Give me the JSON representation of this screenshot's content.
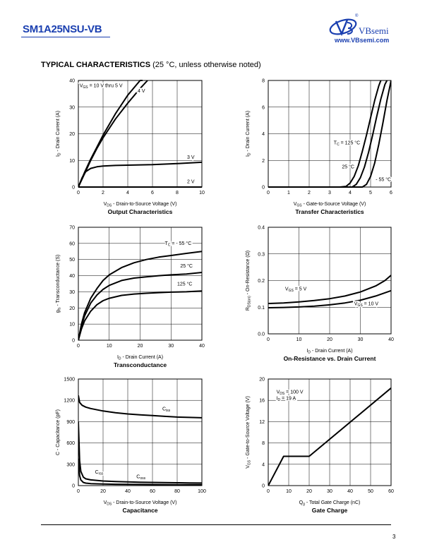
{
  "header": {
    "part_number": "SM1A25NSU-VB",
    "brand": "VBsemi",
    "registered": "®",
    "website": "www.VBsemi.com"
  },
  "section": {
    "title_bold": "TYPICAL CHARACTERISTICS",
    "title_rest": " (25 °C, unless otherwise noted)"
  },
  "footer": {
    "page": "3"
  },
  "chart_data": [
    {
      "id": "output",
      "type": "line",
      "title": "Output Characteristics",
      "xlabel": [
        "V",
        "DS",
        " - Drain-to-Source Voltage (V)"
      ],
      "ylabel": [
        "I",
        "D",
        " - Drain Current (A)"
      ],
      "xlim": [
        0,
        10
      ],
      "ylim": [
        0,
        40
      ],
      "xticks": [
        0,
        2,
        4,
        6,
        8,
        10
      ],
      "yticks": [
        0,
        10,
        20,
        30,
        40
      ],
      "grid": true,
      "series": [
        {
          "name": "VGS = 10 V thru 5 V",
          "x": [
            0,
            0.5,
            1,
            1.5,
            2,
            3,
            4,
            5,
            5.2
          ],
          "y": [
            0,
            5.5,
            10.5,
            15,
            19.5,
            27.5,
            34.5,
            40,
            40
          ]
        },
        {
          "name": "4 V",
          "x": [
            0,
            0.5,
            1,
            1.5,
            2,
            3,
            4,
            5,
            5.6
          ],
          "y": [
            0,
            5,
            10,
            14.5,
            18.5,
            25.5,
            31.5,
            37,
            40
          ]
        },
        {
          "name": "3 V",
          "x": [
            0,
            0.3,
            0.6,
            1,
            1.5,
            2,
            3,
            4,
            6,
            8,
            10
          ],
          "y": [
            0,
            3.5,
            5.8,
            7,
            7.6,
            7.9,
            8.1,
            8.2,
            8.4,
            8.8,
            9.3
          ]
        },
        {
          "name": "2 V",
          "x": [
            0,
            10
          ],
          "y": [
            0,
            0
          ]
        }
      ],
      "annotations": [
        {
          "parts": [
            "V",
            "GS",
            " = 10 V thru 5 V"
          ],
          "x": 0.1,
          "y": 37.5
        },
        {
          "parts": [
            "4 V"
          ],
          "x": 4.8,
          "y": 35.5
        },
        {
          "parts": [
            "3 V"
          ],
          "x": 8.8,
          "y": 10.6
        },
        {
          "parts": [
            "2 V"
          ],
          "x": 8.8,
          "y": 1.5
        }
      ]
    },
    {
      "id": "transfer",
      "type": "line",
      "title": "Transfer Characteristics",
      "xlabel": [
        "V",
        "GS",
        " - Gate-to-Source Voltage (V)"
      ],
      "ylabel": [
        "I",
        "D",
        " - Drain Current (A)"
      ],
      "xlim": [
        0,
        6
      ],
      "ylim": [
        0,
        8
      ],
      "xticks": [
        0,
        1,
        2,
        3,
        4,
        5,
        6
      ],
      "yticks": [
        0,
        2,
        4,
        6,
        8
      ],
      "grid": true,
      "series": [
        {
          "name": "TC = 125 °C",
          "x": [
            0,
            3.5,
            3.8,
            4,
            4.2,
            4.4,
            4.6,
            4.8,
            5,
            5.2,
            5.4,
            5.5
          ],
          "y": [
            0,
            0,
            0.05,
            0.3,
            0.8,
            1.6,
            2.7,
            3.9,
            5.2,
            6.5,
            7.6,
            8
          ]
        },
        {
          "name": "25 °C",
          "x": [
            0,
            4.1,
            4.3,
            4.5,
            4.7,
            4.9,
            5.1,
            5.3,
            5.5,
            5.7,
            5.8
          ],
          "y": [
            0,
            0,
            0.2,
            0.7,
            1.5,
            2.6,
            3.9,
            5.3,
            6.6,
            7.7,
            8
          ]
        },
        {
          "name": "- 55 °C",
          "x": [
            0,
            4.6,
            4.8,
            5,
            5.2,
            5.4,
            5.6,
            5.8,
            5.95,
            6
          ],
          "y": [
            0,
            0,
            0.2,
            0.8,
            1.8,
            3.2,
            4.8,
            6.5,
            7.6,
            8
          ]
        }
      ],
      "annotations": [
        {
          "parts": [
            "T",
            "C",
            " = 125 °C"
          ],
          "x": 3.2,
          "y": 3.2
        },
        {
          "parts": [
            "25 °C"
          ],
          "x": 3.6,
          "y": 1.4
        },
        {
          "parts": [
            "- 55 °C"
          ],
          "x": 5.25,
          "y": 0.45
        }
      ]
    },
    {
      "id": "gfs",
      "type": "line",
      "title": "Transconductance",
      "xlabel": [
        "I",
        "D",
        " - Drain Current (A)"
      ],
      "ylabel": [
        "g",
        "fs",
        " - Transconductance (S)"
      ],
      "xlim": [
        0,
        40
      ],
      "ylim": [
        0,
        70
      ],
      "xticks": [
        0,
        10,
        20,
        30,
        40
      ],
      "yticks": [
        0,
        10,
        20,
        30,
        40,
        50,
        60,
        70
      ],
      "grid": true,
      "series": [
        {
          "name": "TC = - 55 °C",
          "x": [
            0,
            1,
            2,
            4,
            6,
            8,
            10,
            14,
            18,
            22,
            26,
            30,
            35,
            40
          ],
          "y": [
            0,
            10,
            17,
            26,
            32,
            37,
            40.5,
            45,
            48,
            50,
            51.5,
            52.5,
            53.8,
            55
          ]
        },
        {
          "name": "25 °C",
          "x": [
            0,
            1,
            2,
            4,
            6,
            8,
            10,
            14,
            18,
            22,
            26,
            30,
            35,
            40
          ],
          "y": [
            0,
            9,
            15,
            23,
            28,
            31.5,
            34,
            37,
            38.5,
            39.3,
            40,
            40.5,
            41,
            42
          ]
        },
        {
          "name": "125 °C",
          "x": [
            0,
            1,
            2,
            4,
            6,
            8,
            10,
            14,
            18,
            22,
            26,
            30,
            35,
            40
          ],
          "y": [
            0,
            7,
            12,
            18,
            22,
            24.5,
            26,
            27.8,
            28.6,
            29.1,
            29.5,
            29.8,
            30,
            30.5
          ]
        }
      ],
      "annotations": [
        {
          "parts": [
            "T",
            "C",
            " = - 55 °C"
          ],
          "x": 28,
          "y": 59
        },
        {
          "parts": [
            "25 °C"
          ],
          "x": 33,
          "y": 45
        },
        {
          "parts": [
            "125 °C"
          ],
          "x": 32,
          "y": 34
        }
      ]
    },
    {
      "id": "rdson",
      "type": "line",
      "title": "On-Resistance vs. Drain Current",
      "xlabel": [
        "I",
        "D",
        " - Drain Current (A)"
      ],
      "ylabel": [
        "R",
        "DS(on)",
        " - On-Resistance (Ω)"
      ],
      "xlim": [
        0,
        40
      ],
      "ylim": [
        0,
        0.4
      ],
      "xticks": [
        0,
        10,
        20,
        30,
        40
      ],
      "yticks": [
        "0.0",
        "0.1",
        "0.2",
        "0.3",
        "0.4"
      ],
      "grid": true,
      "series": [
        {
          "name": "VGS = 5 V",
          "x": [
            0,
            5,
            10,
            15,
            20,
            25,
            30,
            35,
            38,
            40
          ],
          "y": [
            0.114,
            0.116,
            0.12,
            0.125,
            0.132,
            0.142,
            0.157,
            0.18,
            0.2,
            0.22
          ]
        },
        {
          "name": "VGS = 10 V",
          "x": [
            0,
            5,
            10,
            15,
            20,
            25,
            30,
            35,
            40
          ],
          "y": [
            0.098,
            0.099,
            0.101,
            0.104,
            0.109,
            0.116,
            0.126,
            0.142,
            0.162
          ]
        }
      ],
      "annotations": [
        {
          "parts": [
            "V",
            "GS",
            " = 5 V"
          ],
          "x": 5.5,
          "y": 0.163
        },
        {
          "parts": [
            "V",
            "GS",
            " = 10 V"
          ],
          "x": 28,
          "y": 0.107
        }
      ]
    },
    {
      "id": "cap",
      "type": "line",
      "title": "Capacitance",
      "xlabel": [
        "V",
        "DS",
        " - Drain-to-Source Voltage (V)"
      ],
      "ylabel": [
        "C - Capacitance (pF)"
      ],
      "xlim": [
        0,
        100
      ],
      "ylim": [
        0,
        1500
      ],
      "xticks": [
        0,
        20,
        40,
        60,
        80,
        100
      ],
      "yticks": [
        0,
        300,
        600,
        900,
        1200,
        1500
      ],
      "grid": true,
      "series": [
        {
          "name": "Ciss",
          "x": [
            0,
            1,
            3,
            6,
            10,
            20,
            30,
            40,
            50,
            60,
            70,
            80,
            90,
            100
          ],
          "y": [
            1270,
            1170,
            1130,
            1105,
            1085,
            1050,
            1025,
            1008,
            995,
            985,
            975,
            965,
            960,
            955
          ]
        },
        {
          "name": "Coss",
          "x": [
            0,
            1,
            2,
            4,
            6,
            10,
            20,
            30,
            40,
            50,
            60,
            70,
            80,
            90,
            100
          ],
          "y": [
            900,
            350,
            200,
            120,
            95,
            80,
            65,
            57,
            52,
            48,
            45,
            42,
            40,
            38,
            36
          ]
        },
        {
          "name": "Crss",
          "x": [
            0,
            1,
            2,
            4,
            6,
            10,
            20,
            30,
            40,
            50,
            60,
            70,
            80,
            90,
            100
          ],
          "y": [
            380,
            140,
            80,
            45,
            35,
            28,
            22,
            19,
            17,
            16,
            15,
            14,
            13,
            12,
            12
          ]
        }
      ],
      "annotations": [
        {
          "parts": [
            "C",
            "iss"
          ],
          "x": 68,
          "y": 1060
        },
        {
          "parts": [
            "C",
            "rss"
          ],
          "x": 13.5,
          "y": 170
        },
        {
          "parts": [
            "C",
            "oss"
          ],
          "x": 47,
          "y": 105
        }
      ]
    },
    {
      "id": "gate",
      "type": "line",
      "title": "Gate Charge",
      "xlabel": [
        "Q",
        "g",
        " - Total Gate Charge (nC)"
      ],
      "ylabel": [
        "V",
        "GS",
        " - Gate-to-Source Voltage (V)"
      ],
      "xlim": [
        0,
        60
      ],
      "ylim": [
        0,
        20
      ],
      "xticks": [
        0,
        10,
        20,
        30,
        40,
        50,
        60
      ],
      "yticks": [
        0,
        4,
        8,
        12,
        16,
        20
      ],
      "grid": true,
      "series": [
        {
          "name": "VGS",
          "x": [
            0,
            7.5,
            20,
            60
          ],
          "y": [
            0,
            5.5,
            5.5,
            18.3
          ]
        }
      ],
      "annotations": [
        {
          "parts": [
            "V",
            "DS",
            " = 100 V"
          ],
          "x": 4,
          "y": 17.3
        },
        {
          "parts": [
            "I",
            "D",
            " = 19 A"
          ],
          "x": 4,
          "y": 16.1
        }
      ]
    }
  ]
}
